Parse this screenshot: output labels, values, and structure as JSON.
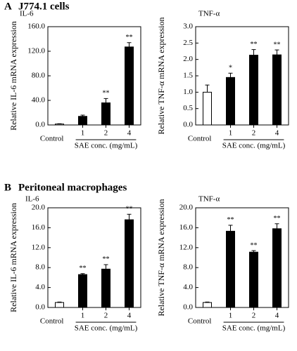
{
  "sections": [
    {
      "letter": "A",
      "title": "J774.1 cells"
    },
    {
      "letter": "B",
      "title": "Peritoneal macrophages"
    }
  ],
  "chart_data": [
    {
      "type": "bar",
      "title": "IL-6",
      "categories": [
        "Control",
        "1",
        "2",
        "4"
      ],
      "values": [
        1.5,
        14,
        36,
        127
      ],
      "errors": [
        0.5,
        2,
        7,
        7
      ],
      "annotations": [
        null,
        null,
        "**",
        "**"
      ],
      "colors": [
        "#ffffff",
        "#000000",
        "#000000",
        "#000000"
      ],
      "ylim": [
        0,
        160
      ],
      "yticks": [
        {
          "value": 0,
          "label": "0.0"
        },
        {
          "value": 40,
          "label": "40.0"
        },
        {
          "value": 80,
          "label": "80.0"
        },
        {
          "value": 120,
          "label": "120.0"
        },
        {
          "value": 160,
          "label": "160.0"
        }
      ],
      "xlabel": "SAE conc. (mg/mL)",
      "ylabel": "Relative IL-6 mRNA expression"
    },
    {
      "type": "bar",
      "title": "TNF-α",
      "categories": [
        "Control",
        "1",
        "2",
        "4"
      ],
      "values": [
        1.0,
        1.45,
        2.13,
        2.14
      ],
      "errors": [
        0.22,
        0.13,
        0.17,
        0.15
      ],
      "annotations": [
        null,
        "*",
        "**",
        "**"
      ],
      "colors": [
        "#ffffff",
        "#000000",
        "#000000",
        "#000000"
      ],
      "ylim": [
        0,
        3
      ],
      "yticks": [
        {
          "value": 0,
          "label": "0.0"
        },
        0.5,
        {
          "value": 1,
          "label": "1.0"
        },
        1.5,
        {
          "value": 2,
          "label": "2.0"
        },
        2.5,
        {
          "value": 3,
          "label": "3.0"
        }
      ],
      "xlabel": "SAE conc. (mg/mL)",
      "ylabel": "Relative TNF-α mRNA expression"
    },
    {
      "type": "bar",
      "title": "IL-6",
      "categories": [
        "Control",
        "1",
        "2",
        "4"
      ],
      "values": [
        1.0,
        6.6,
        7.7,
        17.6
      ],
      "errors": [
        0.1,
        0.2,
        0.9,
        1.1
      ],
      "annotations": [
        null,
        "**",
        "**",
        "**"
      ],
      "colors": [
        "#ffffff",
        "#000000",
        "#000000",
        "#000000"
      ],
      "ylim": [
        0,
        20
      ],
      "yticks": [
        {
          "value": 0,
          "label": "0.0"
        },
        {
          "value": 4,
          "label": "4.0"
        },
        {
          "value": 8,
          "label": "8.0"
        },
        {
          "value": 12,
          "label": "12.0"
        },
        {
          "value": 16,
          "label": "16.0"
        },
        {
          "value": 20,
          "label": "20.0"
        }
      ],
      "xlabel": "SAE conc. (mg/mL)",
      "ylabel": "Relative IL-6 mRNA expression"
    },
    {
      "type": "bar",
      "title": "TNF-α",
      "categories": [
        "Control",
        "1",
        "2",
        "4"
      ],
      "values": [
        1.0,
        15.3,
        11.1,
        15.8
      ],
      "errors": [
        0.1,
        1.2,
        0.3,
        1.0
      ],
      "annotations": [
        null,
        "**",
        "**",
        "**"
      ],
      "colors": [
        "#ffffff",
        "#000000",
        "#000000",
        "#000000"
      ],
      "ylim": [
        0,
        20
      ],
      "yticks": [
        {
          "value": 0,
          "label": "0.0"
        },
        {
          "value": 4,
          "label": "4.0"
        },
        {
          "value": 8,
          "label": "8.0"
        },
        {
          "value": 12,
          "label": "12.0"
        },
        {
          "value": 16,
          "label": "16.0"
        },
        {
          "value": 20,
          "label": "20.0"
        }
      ],
      "xlabel": "SAE conc. (mg/mL)",
      "ylabel": "Relative TNF-α mRNA expression"
    }
  ]
}
